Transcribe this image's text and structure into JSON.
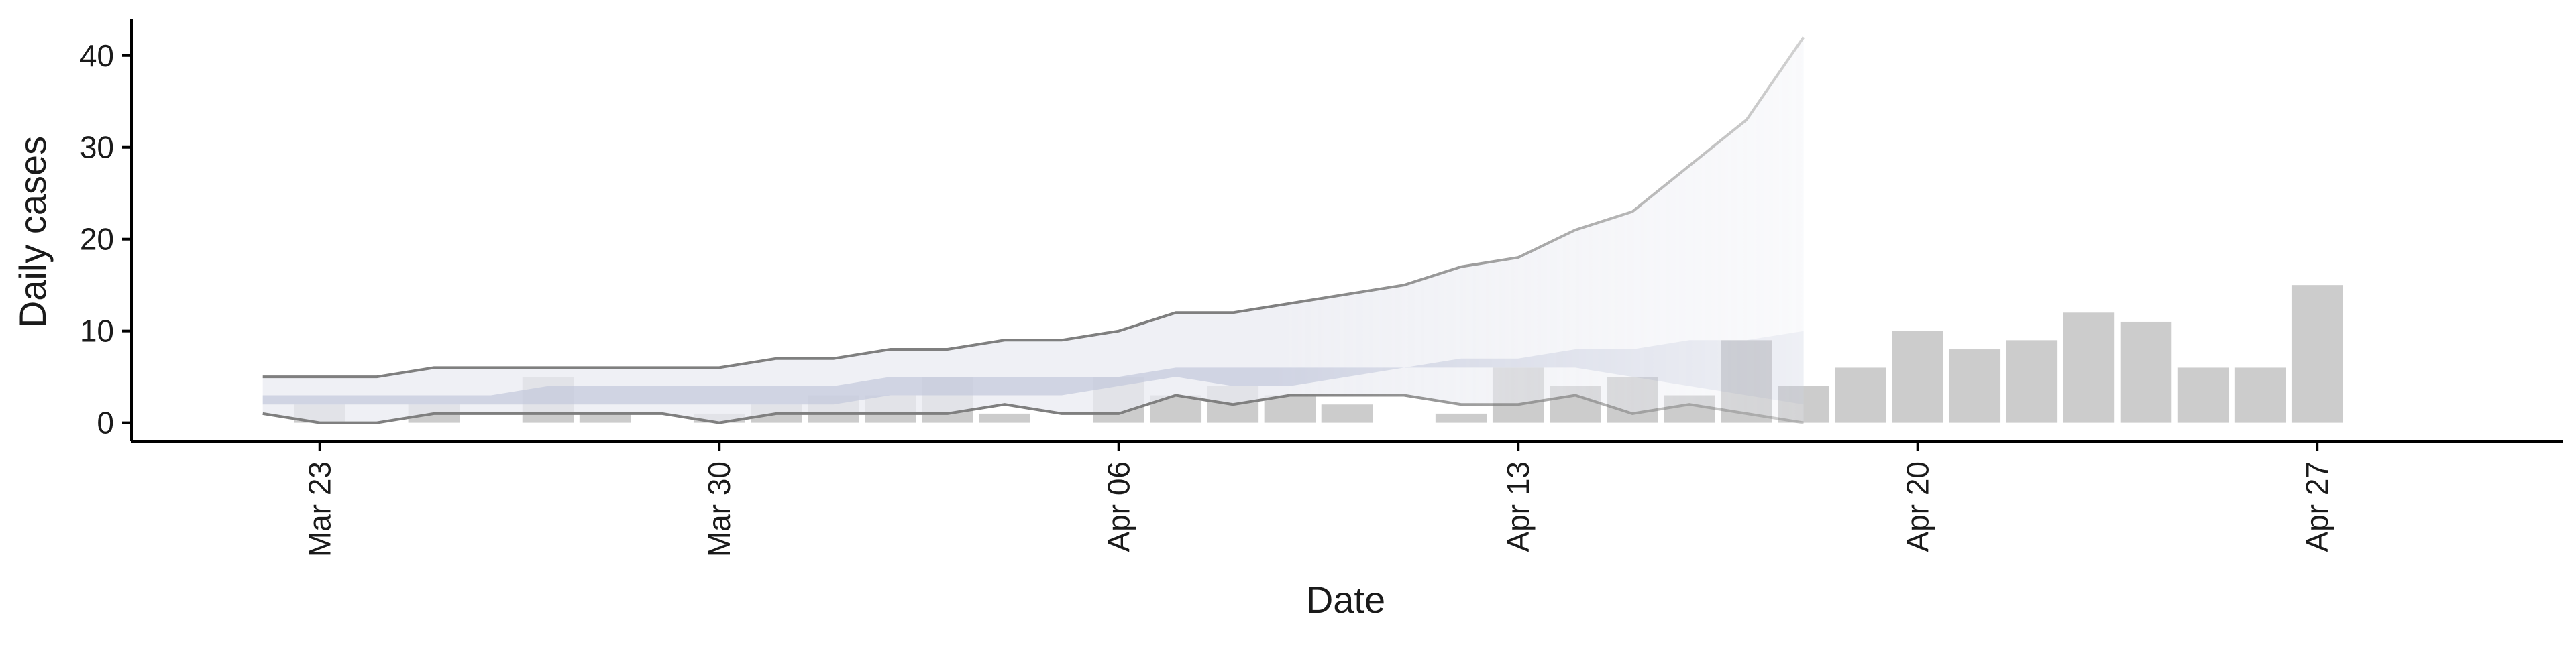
{
  "chart_data": {
    "type": "bar",
    "xlabel": "Date",
    "ylabel": "Daily cases",
    "x_ticks": [
      "Mar 23",
      "Mar 30",
      "Apr 06",
      "Apr 13",
      "Apr 20",
      "Apr 27"
    ],
    "x_tick_day_index": [
      2,
      9,
      16,
      23,
      30,
      37
    ],
    "y_ticks": [
      0,
      10,
      20,
      30,
      40
    ],
    "xlim_day_index": [
      -1.3,
      41.3
    ],
    "ylim": [
      -2,
      44
    ],
    "grid": false,
    "legend": "none",
    "bars": {
      "day_index": [
        2,
        3,
        4,
        5,
        6,
        7,
        8,
        9,
        10,
        11,
        12,
        13,
        14,
        15,
        16,
        17,
        18,
        19,
        20,
        21,
        22,
        23,
        24,
        25,
        26,
        27,
        28,
        29,
        30,
        31,
        32,
        33,
        34,
        35,
        36,
        37,
        38,
        39,
        40
      ],
      "values": [
        2,
        0,
        2,
        0,
        5,
        1,
        0,
        1,
        2,
        3,
        3,
        5,
        1,
        0,
        5,
        3,
        4,
        3,
        2,
        0,
        1,
        6,
        4,
        5,
        3,
        9,
        4,
        6,
        10,
        8,
        9,
        12,
        11,
        6,
        6,
        15,
        0,
        0,
        0
      ]
    },
    "projection": {
      "day_index": [
        1,
        2,
        3,
        4,
        5,
        6,
        7,
        8,
        9,
        10,
        11,
        12,
        13,
        14,
        15,
        16,
        17,
        18,
        19,
        20,
        21,
        22,
        23,
        24,
        25,
        26,
        27,
        28
      ],
      "outer_upper": [
        5,
        5,
        5,
        6,
        6,
        6,
        6,
        6,
        6,
        7,
        7,
        8,
        8,
        9,
        9,
        10,
        12,
        12,
        13,
        14,
        15,
        17,
        18,
        21,
        23,
        28,
        33,
        42
      ],
      "outer_lower": [
        1,
        0,
        0,
        1,
        1,
        1,
        1,
        1,
        0,
        1,
        1,
        1,
        1,
        2,
        1,
        1,
        3,
        2,
        3,
        3,
        3,
        2,
        2,
        3,
        1,
        2,
        1,
        0
      ],
      "inner_upper": [
        3,
        3,
        3,
        3,
        3,
        4,
        4,
        4,
        4,
        4,
        4,
        5,
        5,
        5,
        5,
        5,
        6,
        6,
        6,
        6,
        6,
        7,
        7,
        8,
        8,
        9,
        9,
        10
      ],
      "inner_lower": [
        2,
        2,
        2,
        2,
        2,
        2,
        2,
        2,
        2,
        2,
        2,
        3,
        3,
        3,
        3,
        4,
        5,
        4,
        4,
        5,
        6,
        6,
        6,
        6,
        5,
        4,
        3,
        2
      ],
      "colors": {
        "outer_band": "#e9ebf2",
        "inner_band": "#c3c9dc",
        "line": "#7f7f7f",
        "bars": "#cccccc"
      }
    }
  }
}
